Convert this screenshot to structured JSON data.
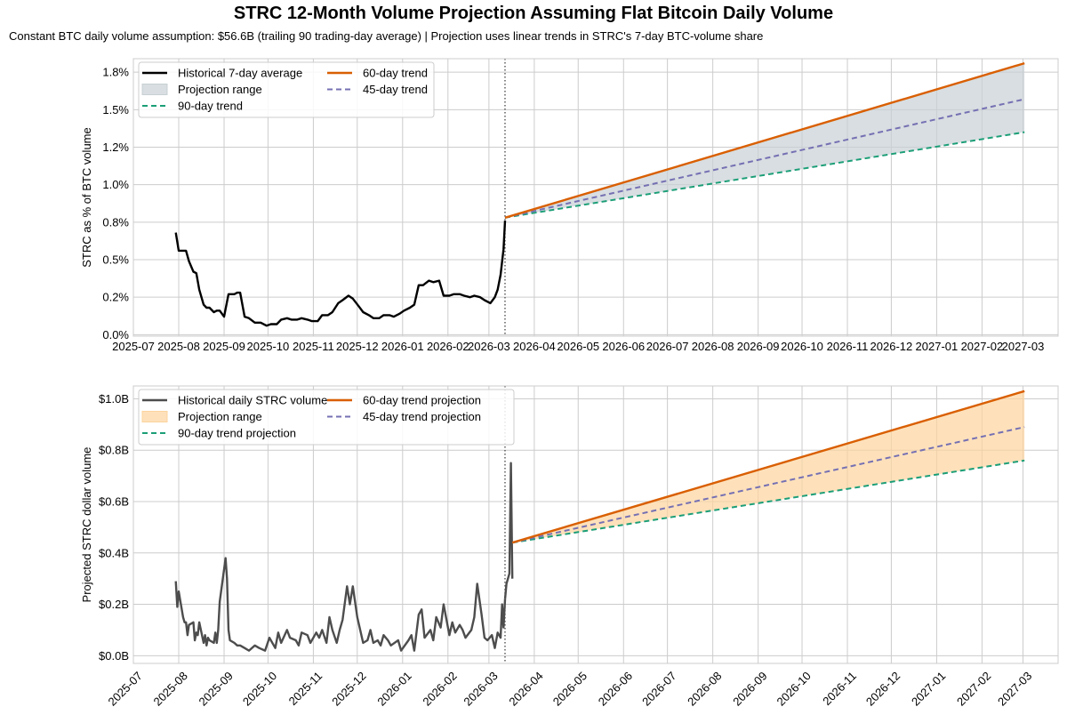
{
  "figure": {
    "title": "STRC 12-Month Volume Projection Assuming Flat Bitcoin Daily Volume",
    "subtitle": "Constant BTC daily volume assumption: $56.6B (trailing 90 trading-day average) | Projection uses linear trends in STRC's 7-day BTC-volume share"
  },
  "colors": {
    "historical": "#000000",
    "historical_daily": "#4d4d4d",
    "trend60": "#d95f02",
    "trend45": "#7570b3",
    "trend90": "#1b9e77",
    "band_top": "#c8d0d4",
    "band_bottom": "#fdd49e",
    "grid": "#cccccc"
  },
  "chart_data": [
    {
      "type": "line",
      "panel": "top",
      "title": "",
      "xlabel": "",
      "ylabel": "STRC as % of BTC volume",
      "ylim": [
        -0.01,
        1.84
      ],
      "yticks": [
        0.0,
        0.25,
        0.5,
        0.75,
        1.0,
        1.25,
        1.5,
        1.75
      ],
      "ytick_labels": [
        "0.0%",
        "0.2%",
        "0.5%",
        "0.8%",
        "1.0%",
        "1.2%",
        "1.5%",
        "1.8%"
      ],
      "x_range": [
        "2025-07-01",
        "2027-03-25"
      ],
      "xtick_labels": [
        "2025-07",
        "2025-08",
        "2025-09",
        "2025-10",
        "2025-11",
        "2025-12",
        "2026-01",
        "2026-02",
        "2026-03",
        "2026-04",
        "2026-05",
        "2026-06",
        "2026-07",
        "2026-08",
        "2026-09",
        "2026-10",
        "2026-11",
        "2026-12",
        "2027-01",
        "2027-02",
        "2027-03"
      ],
      "xtick_rotation": 0,
      "grid": true,
      "vline_date": "2026-03-12",
      "legend_position": "top-left",
      "legend": [
        {
          "label": "Historical 7-day average",
          "kind": "line",
          "key": "historical"
        },
        {
          "label": "Projection range",
          "kind": "patch",
          "key": "band_top"
        },
        {
          "label": "90-day trend",
          "kind": "dashed",
          "key": "trend90"
        },
        {
          "label": "60-day trend",
          "kind": "line",
          "key": "trend60"
        },
        {
          "label": "45-day trend",
          "kind": "dashed",
          "key": "trend45"
        }
      ],
      "series": [
        {
          "name": "Historical 7-day average",
          "color_key": "historical",
          "style": "solid",
          "x": [
            "2025-07-30",
            "2025-08-01",
            "2025-08-04",
            "2025-08-06",
            "2025-08-08",
            "2025-08-11",
            "2025-08-13",
            "2025-08-15",
            "2025-08-18",
            "2025-08-20",
            "2025-08-22",
            "2025-08-25",
            "2025-08-27",
            "2025-08-29",
            "2025-09-01",
            "2025-09-04",
            "2025-09-08",
            "2025-09-10",
            "2025-09-12",
            "2025-09-15",
            "2025-09-18",
            "2025-09-22",
            "2025-09-26",
            "2025-09-30",
            "2025-10-03",
            "2025-10-07",
            "2025-10-10",
            "2025-10-14",
            "2025-10-17",
            "2025-10-21",
            "2025-10-24",
            "2025-10-28",
            "2025-10-31",
            "2025-11-04",
            "2025-11-07",
            "2025-11-11",
            "2025-11-14",
            "2025-11-18",
            "2025-11-21",
            "2025-11-25",
            "2025-11-28",
            "2025-12-02",
            "2025-12-05",
            "2025-12-09",
            "2025-12-12",
            "2025-12-16",
            "2025-12-19",
            "2025-12-23",
            "2025-12-26",
            "2025-12-30",
            "2026-01-02",
            "2026-01-06",
            "2026-01-09",
            "2026-01-12",
            "2026-01-15",
            "2026-01-19",
            "2026-01-22",
            "2026-01-26",
            "2026-01-29",
            "2026-02-02",
            "2026-02-05",
            "2026-02-09",
            "2026-02-12",
            "2026-02-16",
            "2026-02-19",
            "2026-02-23",
            "2026-02-26",
            "2026-03-02",
            "2026-03-05",
            "2026-03-07",
            "2026-03-09",
            "2026-03-11",
            "2026-03-12"
          ],
          "y": [
            0.68,
            0.56,
            0.56,
            0.56,
            0.49,
            0.42,
            0.41,
            0.3,
            0.2,
            0.18,
            0.18,
            0.15,
            0.16,
            0.16,
            0.12,
            0.27,
            0.27,
            0.28,
            0.28,
            0.12,
            0.11,
            0.08,
            0.08,
            0.06,
            0.07,
            0.07,
            0.1,
            0.11,
            0.1,
            0.1,
            0.11,
            0.1,
            0.09,
            0.09,
            0.13,
            0.13,
            0.15,
            0.21,
            0.23,
            0.26,
            0.24,
            0.19,
            0.15,
            0.13,
            0.11,
            0.11,
            0.13,
            0.13,
            0.12,
            0.14,
            0.16,
            0.18,
            0.2,
            0.33,
            0.33,
            0.36,
            0.35,
            0.36,
            0.26,
            0.26,
            0.27,
            0.27,
            0.26,
            0.25,
            0.26,
            0.25,
            0.23,
            0.21,
            0.25,
            0.3,
            0.4,
            0.57,
            0.76
          ]
        },
        {
          "name": "90-day trend",
          "color_key": "trend90",
          "style": "dashed",
          "x": [
            "2026-03-12",
            "2027-03-02"
          ],
          "y": [
            0.78,
            1.35
          ]
        },
        {
          "name": "45-day trend",
          "color_key": "trend45",
          "style": "dashed",
          "x": [
            "2026-03-12",
            "2027-03-02"
          ],
          "y": [
            0.78,
            1.57
          ]
        },
        {
          "name": "60-day trend",
          "color_key": "trend60",
          "style": "solid",
          "x": [
            "2026-03-12",
            "2027-03-02"
          ],
          "y": [
            0.78,
            1.81
          ]
        }
      ],
      "band": {
        "name": "Projection range",
        "color_key": "band_top",
        "x": [
          "2026-03-12",
          "2027-03-02"
        ],
        "lower": [
          0.78,
          1.35
        ],
        "upper": [
          0.78,
          1.81
        ]
      }
    },
    {
      "type": "line",
      "panel": "bottom",
      "title": "",
      "xlabel": "",
      "ylabel": "Projected STRC dollar volume",
      "ylim": [
        -0.03,
        1.05
      ],
      "yticks": [
        0.0,
        0.2,
        0.4,
        0.6,
        0.8,
        1.0
      ],
      "ytick_labels": [
        "$0.0B",
        "$0.2B",
        "$0.4B",
        "$0.6B",
        "$0.8B",
        "$1.0B"
      ],
      "x_range": [
        "2025-07-01",
        "2027-03-25"
      ],
      "xtick_labels": [
        "2025-07",
        "2025-08",
        "2025-09",
        "2025-10",
        "2025-11",
        "2025-12",
        "2026-01",
        "2026-02",
        "2026-03",
        "2026-04",
        "2026-05",
        "2026-06",
        "2026-07",
        "2026-08",
        "2026-09",
        "2026-10",
        "2026-11",
        "2026-12",
        "2027-01",
        "2027-02",
        "2027-03"
      ],
      "xtick_rotation": 45,
      "grid": true,
      "vline_date": "2026-03-12",
      "legend_position": "top-left",
      "legend": [
        {
          "label": "Historical daily STRC volume",
          "kind": "line",
          "key": "historical_daily"
        },
        {
          "label": "Projection range",
          "kind": "patch",
          "key": "band_bottom"
        },
        {
          "label": "90-day trend projection",
          "kind": "dashed",
          "key": "trend90"
        },
        {
          "label": "60-day trend projection",
          "kind": "line",
          "key": "trend60"
        },
        {
          "label": "45-day trend projection",
          "kind": "dashed",
          "key": "trend45"
        }
      ],
      "series": [
        {
          "name": "Historical daily STRC volume",
          "color_key": "historical_daily",
          "style": "solid",
          "x": [
            "2025-07-30",
            "2025-07-31",
            "2025-08-01",
            "2025-08-04",
            "2025-08-05",
            "2025-08-06",
            "2025-08-07",
            "2025-08-08",
            "2025-08-11",
            "2025-08-12",
            "2025-08-13",
            "2025-08-14",
            "2025-08-15",
            "2025-08-18",
            "2025-08-19",
            "2025-08-20",
            "2025-08-21",
            "2025-08-22",
            "2025-08-25",
            "2025-08-26",
            "2025-08-27",
            "2025-08-28",
            "2025-08-29",
            "2025-09-02",
            "2025-09-03",
            "2025-09-04",
            "2025-09-05",
            "2025-09-08",
            "2025-09-10",
            "2025-09-12",
            "2025-09-15",
            "2025-09-18",
            "2025-09-22",
            "2025-09-25",
            "2025-09-29",
            "2025-10-02",
            "2025-10-06",
            "2025-10-08",
            "2025-10-10",
            "2025-10-14",
            "2025-10-16",
            "2025-10-20",
            "2025-10-22",
            "2025-10-24",
            "2025-10-28",
            "2025-10-30",
            "2025-11-03",
            "2025-11-05",
            "2025-11-07",
            "2025-11-10",
            "2025-11-12",
            "2025-11-14",
            "2025-11-17",
            "2025-11-19",
            "2025-11-21",
            "2025-11-24",
            "2025-11-26",
            "2025-11-28",
            "2025-12-01",
            "2025-12-03",
            "2025-12-05",
            "2025-12-08",
            "2025-12-10",
            "2025-12-12",
            "2025-12-15",
            "2025-12-17",
            "2025-12-19",
            "2025-12-22",
            "2025-12-24",
            "2025-12-29",
            "2025-12-31",
            "2026-01-05",
            "2026-01-07",
            "2026-01-09",
            "2026-01-12",
            "2026-01-14",
            "2026-01-16",
            "2026-01-20",
            "2026-01-22",
            "2026-01-24",
            "2026-01-27",
            "2026-01-29",
            "2026-02-02",
            "2026-02-04",
            "2026-02-06",
            "2026-02-09",
            "2026-02-11",
            "2026-02-13",
            "2026-02-17",
            "2026-02-19",
            "2026-02-21",
            "2026-02-24",
            "2026-02-26",
            "2026-02-28",
            "2026-03-03",
            "2026-03-05",
            "2026-03-07",
            "2026-03-09",
            "2026-03-10",
            "2026-03-11",
            "2026-03-12"
          ],
          "y": [
            0.29,
            0.19,
            0.25,
            0.15,
            0.13,
            0.13,
            0.08,
            0.12,
            0.13,
            0.06,
            0.09,
            0.08,
            0.13,
            0.05,
            0.08,
            0.04,
            0.07,
            0.06,
            0.05,
            0.09,
            0.05,
            0.1,
            0.21,
            0.38,
            0.3,
            0.1,
            0.06,
            0.05,
            0.04,
            0.04,
            0.03,
            0.02,
            0.04,
            0.03,
            0.02,
            0.07,
            0.03,
            0.09,
            0.05,
            0.1,
            0.07,
            0.06,
            0.04,
            0.09,
            0.08,
            0.05,
            0.09,
            0.07,
            0.1,
            0.05,
            0.15,
            0.1,
            0.05,
            0.1,
            0.14,
            0.27,
            0.2,
            0.27,
            0.15,
            0.1,
            0.05,
            0.06,
            0.1,
            0.05,
            0.06,
            0.04,
            0.08,
            0.06,
            0.04,
            0.06,
            0.02,
            0.06,
            0.08,
            0.02,
            0.16,
            0.18,
            0.07,
            0.1,
            0.06,
            0.15,
            0.11,
            0.2,
            0.08,
            0.13,
            0.09,
            0.12,
            0.1,
            0.07,
            0.1,
            0.15,
            0.28,
            0.16,
            0.07,
            0.06,
            0.08,
            0.03,
            0.09,
            0.07,
            0.2,
            0.11,
            0.22
          ]
        },
        {
          "name": "Historical daily STRC volume (spike)",
          "color_key": "historical_daily",
          "style": "solid",
          "x": [
            "2026-03-12",
            "2026-03-13",
            "2026-03-15",
            "2026-03-16",
            "2026-03-17"
          ],
          "y": [
            0.22,
            0.28,
            0.32,
            0.75,
            0.3
          ]
        },
        {
          "name": "90-day trend projection",
          "color_key": "trend90",
          "style": "dashed",
          "x": [
            "2026-03-17",
            "2027-03-02"
          ],
          "y": [
            0.44,
            0.76
          ]
        },
        {
          "name": "45-day trend projection",
          "color_key": "trend45",
          "style": "dashed",
          "x": [
            "2026-03-17",
            "2027-03-02"
          ],
          "y": [
            0.44,
            0.89
          ]
        },
        {
          "name": "60-day trend projection",
          "color_key": "trend60",
          "style": "solid",
          "x": [
            "2026-03-17",
            "2027-03-02"
          ],
          "y": [
            0.44,
            1.03
          ]
        }
      ],
      "band": {
        "name": "Projection range",
        "color_key": "band_bottom",
        "x": [
          "2026-03-17",
          "2027-03-02"
        ],
        "lower": [
          0.44,
          0.76
        ],
        "upper": [
          0.44,
          1.03
        ]
      }
    }
  ]
}
